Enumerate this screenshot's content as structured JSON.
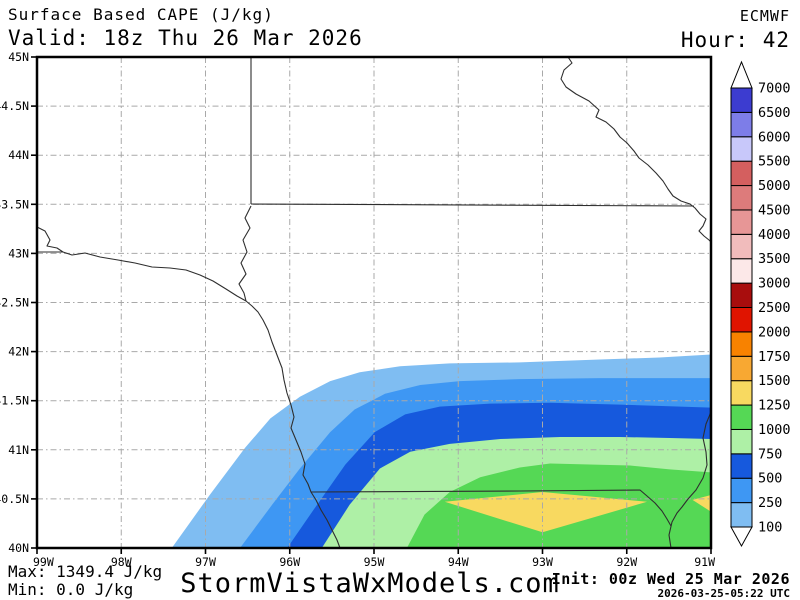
{
  "header": {
    "title": "Surface Based CAPE (J/kg)",
    "model": "ECMWF",
    "valid": "Valid: 18z Thu 26 Mar 2026",
    "hour": "Hour: 42"
  },
  "footer": {
    "max": "Max: 1349.4 J/kg",
    "min": "Min: 0.0 J/kg",
    "site": "StormVistaWxModels.com",
    "init": "Init: 00z Wed 25 Mar 2026",
    "init_utc": "2026-03-25-05:22 UTC"
  },
  "axes": {
    "lat_labels": [
      "45N",
      "44.5N",
      "44N",
      "43.5N",
      "43N",
      "42.5N",
      "42N",
      "41.5N",
      "41N",
      "40.5N",
      "40N"
    ],
    "lat_values": [
      45,
      44.5,
      44,
      43.5,
      43,
      42.5,
      42,
      41.5,
      41,
      40.5,
      40
    ],
    "lon_labels": [
      "99W",
      "98W",
      "97W",
      "96W",
      "95W",
      "94W",
      "93W",
      "92W",
      "91W"
    ],
    "lon_values": [
      99,
      98,
      97,
      96,
      95,
      94,
      93,
      92,
      91
    ]
  },
  "colorbar": {
    "levels": [
      100,
      250,
      500,
      750,
      1000,
      1250,
      1500,
      1750,
      2000,
      2500,
      3000,
      3500,
      4000,
      4500,
      5000,
      5500,
      6000,
      6500,
      7000
    ],
    "colors": [
      "#7fbdf2",
      "#3e97f3",
      "#1659dd",
      "#aef0a6",
      "#55d855",
      "#f8d960",
      "#f8a832",
      "#f88200",
      "#e01400",
      "#a80d0d",
      "#fce8e8",
      "#f1bcbc",
      "#e79696",
      "#dd7b7b",
      "#d45f5f",
      "#c8c8fa",
      "#7d7de8",
      "#3c3cd0"
    ]
  },
  "chart_data": {
    "type": "filled_contour_map",
    "parameter": "Surface Based CAPE",
    "units": "J/kg",
    "model": "ECMWF",
    "forecast_hour": 42,
    "valid_time": "18z Thu 26 Mar 2026",
    "init_time": "00z Wed 25 Mar 2026",
    "max_value": 1349.4,
    "min_value": 0.0,
    "lon_range_deg_w": [
      99,
      91
    ],
    "lat_range_deg_n": [
      40,
      45
    ],
    "grid_lon_step_deg": 1,
    "grid_lat_step_deg": 0.5,
    "contour_levels": [
      100,
      250,
      500,
      750,
      1000,
      1250,
      1500,
      1750,
      2000,
      2500,
      3000,
      3500,
      4000,
      4500,
      5000,
      5500,
      6000,
      6500,
      7000
    ],
    "region_note": "CAPE maximum in far southeast of domain (southern Iowa / northern Missouri); values decrease to 0 northwest",
    "boundaries_lon_w_lat_n": {
      "100": [
        [
          97.4,
          40.0
        ],
        [
          96.95,
          40.54
        ],
        [
          96.53,
          41.02
        ],
        [
          96.23,
          41.32
        ],
        [
          95.88,
          41.54
        ],
        [
          95.52,
          41.7
        ],
        [
          95.17,
          41.79
        ],
        [
          94.69,
          41.85
        ],
        [
          94.1,
          41.88
        ],
        [
          93.27,
          41.89
        ],
        [
          92.32,
          41.92
        ],
        [
          91.61,
          41.94
        ],
        [
          91.0,
          41.97
        ]
      ],
      "250": [
        [
          96.59,
          40.0
        ],
        [
          96.21,
          40.44
        ],
        [
          95.88,
          40.81
        ],
        [
          95.52,
          41.18
        ],
        [
          95.23,
          41.41
        ],
        [
          94.87,
          41.57
        ],
        [
          94.45,
          41.66
        ],
        [
          93.98,
          41.7
        ],
        [
          93.27,
          41.72
        ],
        [
          92.32,
          41.73
        ],
        [
          91.0,
          41.73
        ]
      ],
      "500": [
        [
          96.03,
          40.0
        ],
        [
          95.7,
          40.41
        ],
        [
          95.34,
          40.85
        ],
        [
          94.99,
          41.18
        ],
        [
          94.63,
          41.36
        ],
        [
          94.22,
          41.44
        ],
        [
          93.62,
          41.47
        ],
        [
          92.91,
          41.48
        ],
        [
          92.08,
          41.46
        ],
        [
          91.0,
          41.43
        ]
      ],
      "750": [
        [
          95.62,
          40.0
        ],
        [
          95.29,
          40.44
        ],
        [
          94.93,
          40.81
        ],
        [
          94.57,
          40.98
        ],
        [
          94.1,
          41.06
        ],
        [
          93.5,
          41.11
        ],
        [
          92.79,
          41.13
        ],
        [
          92.08,
          41.13
        ],
        [
          91.49,
          41.12
        ],
        [
          91.0,
          41.11
        ]
      ],
      "1000": [
        [
          94.61,
          40.0
        ],
        [
          94.4,
          40.34
        ],
        [
          94.1,
          40.57
        ],
        [
          93.74,
          40.72
        ],
        [
          93.27,
          40.82
        ],
        [
          92.91,
          40.86
        ],
        [
          92.44,
          40.85
        ],
        [
          91.96,
          40.84
        ],
        [
          91.49,
          40.8
        ],
        [
          91.0,
          40.77
        ]
      ]
    },
    "patches_1250": [
      [
        [
          94.16,
          40.47
        ],
        [
          93.0,
          40.57
        ],
        [
          91.76,
          40.47
        ],
        [
          93.0,
          40.16
        ]
      ],
      [
        [
          91.22,
          40.49
        ],
        [
          91.0,
          40.54
        ],
        [
          91.0,
          40.37
        ]
      ]
    ]
  }
}
